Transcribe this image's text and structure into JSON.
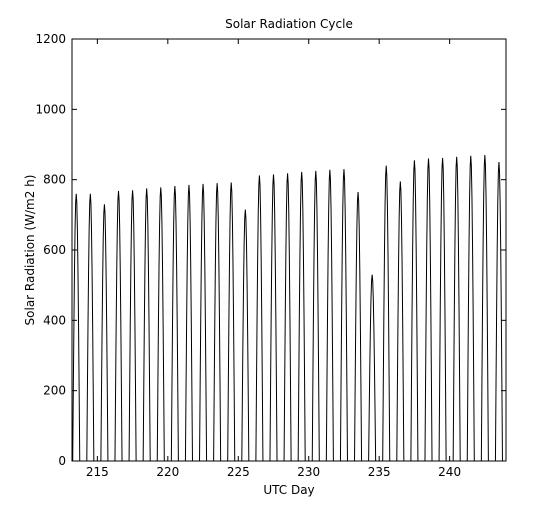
{
  "chart_data": {
    "type": "line",
    "title": "Solar Radiation Cycle",
    "xlabel": "UTC Day",
    "ylabel": "Solar Radiation (W/m2 h)",
    "xlim": [
      213.2,
      244.0
    ],
    "ylim": [
      0,
      1200
    ],
    "xticks": [
      215,
      220,
      225,
      230,
      235,
      240
    ],
    "yticks": [
      0,
      200,
      400,
      600,
      800,
      1000,
      1200
    ],
    "grid": false,
    "legend": "none",
    "line_color": "#000000",
    "series": [
      {
        "daily_peaks": [
          {
            "day": 213,
            "peak": 760
          },
          {
            "day": 214,
            "peak": 760
          },
          {
            "day": 215,
            "peak": 730
          },
          {
            "day": 216,
            "peak": 768
          },
          {
            "day": 217,
            "peak": 770
          },
          {
            "day": 218,
            "peak": 775
          },
          {
            "day": 219,
            "peak": 778
          },
          {
            "day": 220,
            "peak": 782
          },
          {
            "day": 221,
            "peak": 785
          },
          {
            "day": 222,
            "peak": 788
          },
          {
            "day": 223,
            "peak": 790
          },
          {
            "day": 224,
            "peak": 792
          },
          {
            "day": 225,
            "peak": 715
          },
          {
            "day": 226,
            "peak": 812
          },
          {
            "day": 227,
            "peak": 815
          },
          {
            "day": 228,
            "peak": 818
          },
          {
            "day": 229,
            "peak": 822
          },
          {
            "day": 230,
            "peak": 825
          },
          {
            "day": 231,
            "peak": 828
          },
          {
            "day": 232,
            "peak": 830
          },
          {
            "day": 233,
            "peak": 765
          },
          {
            "day": 234,
            "peak": 530
          },
          {
            "day": 235,
            "peak": 840
          },
          {
            "day": 236,
            "peak": 795
          },
          {
            "day": 237,
            "peak": 855
          },
          {
            "day": 238,
            "peak": 860
          },
          {
            "day": 239,
            "peak": 862
          },
          {
            "day": 240,
            "peak": 865
          },
          {
            "day": 241,
            "peak": 868
          },
          {
            "day": 242,
            "peak": 870
          },
          {
            "day": 243,
            "peak": 850
          }
        ]
      }
    ]
  }
}
